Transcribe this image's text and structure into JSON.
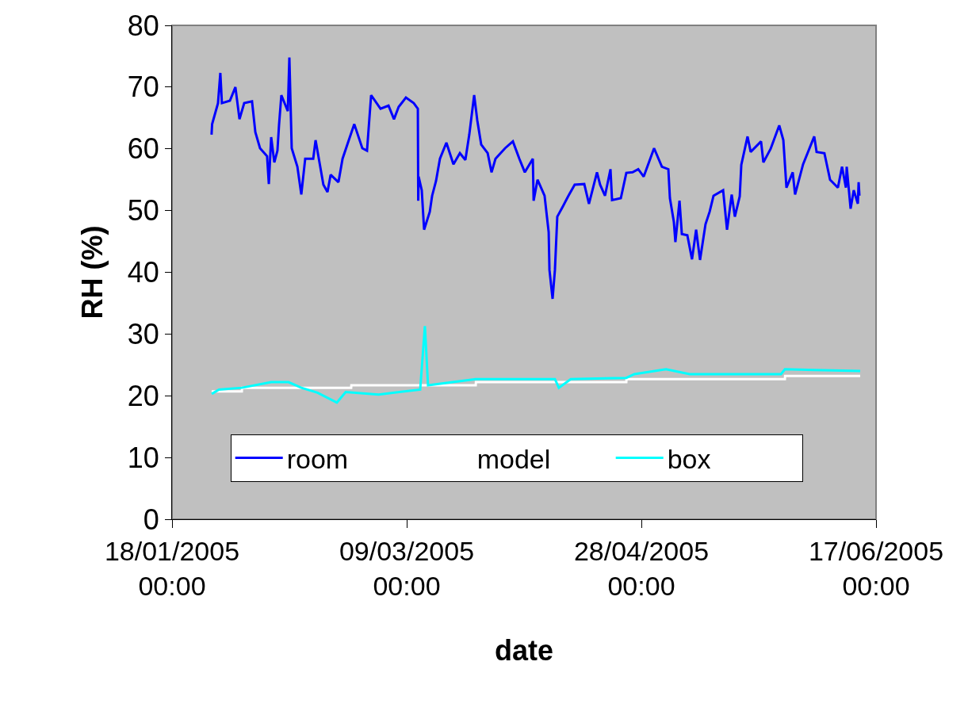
{
  "chart_data": {
    "type": "line",
    "xlabel": "date",
    "ylabel": "RH (%)",
    "xlim": [
      "2005-01-18",
      "2005-06-17"
    ],
    "xticks": [
      {
        "value": "2005-01-18",
        "label": "18/01/2005 00:00"
      },
      {
        "value": "2005-03-09",
        "label": "09/03/2005 00:00"
      },
      {
        "value": "2005-04-28",
        "label": "28/04/2005 00:00"
      },
      {
        "value": "2005-06-17",
        "label": "17/06/2005 00:00"
      }
    ],
    "ylim": [
      0,
      80
    ],
    "yticks": [
      0,
      10,
      20,
      30,
      40,
      50,
      60,
      70,
      80
    ],
    "legend": "bottom",
    "series": [
      {
        "name": "room",
        "color": "#0000ff",
        "x": [
          "2005-01-26T10:00",
          "2005-01-26T13:00",
          "2005-01-27T19:00",
          "2005-01-28T07:00",
          "2005-01-28T15:00",
          "2005-01-30T08:00",
          "2005-01-31T12:00",
          "2005-02-01T09:00",
          "2005-02-02T09:00",
          "2005-02-04T01:00",
          "2005-02-04T18:00",
          "2005-02-05T18:00",
          "2005-02-07T06:00",
          "2005-02-07T15:00",
          "2005-02-08T03:00",
          "2005-02-08T19:00",
          "2005-02-09T11:00",
          "2005-02-09T19:00",
          "2005-02-10T07:00",
          "2005-02-11T16:00",
          "2005-02-12T00:00",
          "2005-02-12T12:00",
          "2005-02-13T17:00",
          "2005-02-14T13:00",
          "2005-02-15T09:00",
          "2005-02-17T02:00",
          "2005-02-17T14:00",
          "2005-02-19T06:00",
          "2005-02-20T03:00",
          "2005-02-20T19:00",
          "2005-02-22T11:00",
          "2005-02-23T08:00",
          "2005-02-24T16:00",
          "2005-02-25T20:00",
          "2005-02-27T13:00",
          "2005-02-28T13:00",
          "2005-03-01T10:00",
          "2005-03-03T10:00",
          "2005-03-05T03:00",
          "2005-03-06T07:00",
          "2005-03-07T07:00",
          "2005-03-08T20:00",
          "2005-03-10T12:00",
          "2005-03-11T09:00",
          "2005-03-11T11:00",
          "2005-03-11T13:00",
          "2005-03-12T05:00",
          "2005-03-12T17:00",
          "2005-03-13T22:00",
          "2005-03-14T10:00",
          "2005-03-15T06:00",
          "2005-03-16T02:00",
          "2005-03-17T11:00",
          "2005-03-18T23:00",
          "2005-03-20T08:00",
          "2005-03-21T12:00",
          "2005-03-22T08:00",
          "2005-03-23T09:00",
          "2005-03-24T01:00",
          "2005-03-24T21:00",
          "2005-03-26T06:00",
          "2005-03-27T02:00",
          "2005-03-27T22:00",
          "2005-03-29T23:00",
          "2005-03-31T15:00",
          "2005-04-02T00:00",
          "2005-04-03T04:00",
          "2005-04-04T21:00",
          "2005-04-05T01:00",
          "2005-04-05T21:00",
          "2005-04-07T09:00",
          "2005-04-08T06:00",
          "2005-04-08T10:00",
          "2005-04-09T02:00",
          "2005-04-09T14:00",
          "2005-04-10T02:00",
          "2005-04-11T07:00",
          "2005-04-12T11:00",
          "2005-04-13T19:00",
          "2005-04-15T20:00",
          "2005-04-16T20:00",
          "2005-04-17T17:00",
          "2005-04-18T13:00",
          "2005-04-19T05:00",
          "2005-04-20T06:00",
          "2005-04-21T10:00",
          "2005-04-21T18:00",
          "2005-04-23T15:00",
          "2005-04-24T19:00",
          "2005-04-26T03:00",
          "2005-04-27T08:00",
          "2005-04-28T12:00",
          "2005-04-30T17:00",
          "2005-05-02T09:00",
          "2005-05-03T18:00",
          "2005-05-04T02:00",
          "2005-05-04T22:00",
          "2005-05-05T06:00",
          "2005-05-06T03:00",
          "2005-05-06T15:00",
          "2005-05-07T19:00",
          "2005-05-08T19:00",
          "2005-05-09T16:00",
          "2005-05-10T12:00",
          "2005-05-11T16:00",
          "2005-05-12T13:00",
          "2005-05-13T09:00",
          "2005-05-15T10:00",
          "2005-05-16T06:00",
          "2005-05-17T06:00",
          "2005-05-17T22:00",
          "2005-05-18T23:00",
          "2005-05-19T07:00",
          "2005-05-20T15:00",
          "2005-05-21T07:00",
          "2005-05-23T12:00",
          "2005-05-24T00:00",
          "2005-05-25T13:00",
          "2005-05-27T09:00",
          "2005-05-28T06:00",
          "2005-05-28T22:00",
          "2005-05-30T06:00",
          "2005-05-30T18:00",
          "2005-06-01T11:00",
          "2005-06-03T20:00",
          "2005-06-04T08:00",
          "2005-06-06T00:00",
          "2005-06-07T05:00",
          "2005-06-08T21:00",
          "2005-06-09T18:00",
          "2005-06-10T14:00",
          "2005-06-10T18:00",
          "2005-06-11T14:00",
          "2005-06-12T06:00",
          "2005-06-13T03:00",
          "2005-06-13T07:00",
          "2005-06-13T11:00"
        ],
        "values": [
          62.3,
          64,
          67.4,
          72.3,
          67.4,
          67.8,
          70,
          64.8,
          67.4,
          67.7,
          62.7,
          60.1,
          58.8,
          54.3,
          61.9,
          57.8,
          59.7,
          63.8,
          68.7,
          66.1,
          74.8,
          60.1,
          57.1,
          52.6,
          58.4,
          58.4,
          61.4,
          54.2,
          53,
          55.8,
          54.6,
          58.4,
          61.4,
          64,
          60.1,
          59.7,
          68.7,
          66.5,
          67,
          64.8,
          66.8,
          68.3,
          67.4,
          66.5,
          51.6,
          55.5,
          53.3,
          46.9,
          49.8,
          52.4,
          54.8,
          58.4,
          61,
          57.5,
          59.3,
          58.2,
          62.3,
          68.7,
          64.6,
          60.7,
          59.3,
          56.2,
          58.4,
          60.1,
          61.2,
          58.4,
          56.2,
          58.4,
          51.6,
          55,
          52.4,
          46.5,
          40.4,
          35.7,
          40.4,
          49,
          50.7,
          52.4,
          54.2,
          54.3,
          51.1,
          53.7,
          56.2,
          54.2,
          52.4,
          56.7,
          51.7,
          52,
          56.1,
          56.2,
          56.7,
          55.5,
          60.1,
          57.1,
          56.7,
          52,
          48.2,
          44.9,
          51.6,
          46.2,
          46,
          42.1,
          46.9,
          42,
          47.8,
          49.8,
          52.4,
          53.3,
          46.9,
          52.6,
          49,
          52.3,
          57.4,
          62,
          59.5,
          61.2,
          57.8,
          60,
          63.8,
          61.4,
          53.7,
          56.2,
          52.6,
          57.5,
          62,
          59.5,
          59.3,
          55,
          53.7,
          57.1,
          53.7,
          57.1,
          50.3,
          53.3,
          51.1,
          54.6,
          52.4
        ]
      },
      {
        "name": "model",
        "color": "#ffffff",
        "x": [
          "2005-01-26T11:00",
          "2005-02-01T21:00",
          "2005-02-01T22:00",
          "2005-02-25T04:00",
          "2005-02-25T05:00",
          "2005-03-23T17:00",
          "2005-03-23T18:00",
          "2005-04-24T19:00",
          "2005-04-24T20:00",
          "2005-05-28T14:00",
          "2005-05-28T15:00",
          "2005-06-13T15:00"
        ],
        "values": [
          20.7,
          20.7,
          21.3,
          21.3,
          21.7,
          21.7,
          22.2,
          22.2,
          22.7,
          22.7,
          23.2,
          23.2
        ]
      },
      {
        "name": "box",
        "color": "#00ffff",
        "x": [
          "2005-01-26T11:00",
          "2005-01-28T00:00",
          "2005-02-01T21:00",
          "2005-02-08T03:00",
          "2005-02-11T20:00",
          "2005-02-14T13:00",
          "2005-02-18T00:00",
          "2005-02-22T03:00",
          "2005-02-24T00:00",
          "2005-03-03T00:00",
          "2005-03-11T21:00",
          "2005-03-12T21:00",
          "2005-03-13T13:00",
          "2005-03-23T17:00",
          "2005-04-09T14:00",
          "2005-04-10T10:00",
          "2005-04-12T23:00",
          "2005-04-24T19:00",
          "2005-04-26T12:00",
          "2005-05-03T06:00",
          "2005-05-08T07:00",
          "2005-05-27T18:00",
          "2005-05-28T14:00",
          "2005-06-13T15:00"
        ],
        "values": [
          20.3,
          21,
          21.3,
          22.2,
          22.2,
          21.3,
          20.5,
          18.9,
          20.6,
          20.2,
          21,
          31.3,
          21.7,
          22.7,
          22.7,
          21.3,
          22.7,
          22.9,
          23.5,
          24.3,
          23.5,
          23.5,
          24.3,
          24
        ]
      }
    ]
  }
}
